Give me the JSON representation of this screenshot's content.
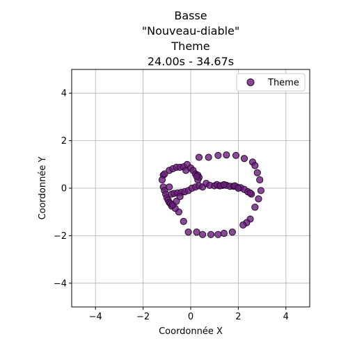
{
  "chart_data": {
    "type": "scatter",
    "title_lines": [
      "Basse",
      "\"Nouveau-diable\"",
      "Theme",
      "24.00s - 34.67s"
    ],
    "xlabel": "Coordonnée X",
    "ylabel": "Coordonnée Y",
    "xlim": [
      -5,
      5
    ],
    "ylim": [
      -5,
      5
    ],
    "xticks": [
      -4,
      -2,
      0,
      2,
      4
    ],
    "yticks": [
      -4,
      -2,
      0,
      2,
      4
    ],
    "xtick_labels": [
      "−4",
      "−2",
      "0",
      "2",
      "4"
    ],
    "ytick_labels": [
      "−4",
      "−2",
      "0",
      "2",
      "4"
    ],
    "grid": true,
    "legend_position": "top-right",
    "series": [
      {
        "name": "Theme",
        "color": "#6a1b7a",
        "edge_color": "#2a0a30",
        "points": [
          [
            -1.15,
            0.55
          ],
          [
            -1.1,
            0.6
          ],
          [
            -0.9,
            0.75
          ],
          [
            -0.75,
            0.82
          ],
          [
            -0.6,
            0.88
          ],
          [
            -0.45,
            0.88
          ],
          [
            -0.3,
            0.9
          ],
          [
            -0.2,
            0.75
          ],
          [
            -0.15,
            1.0
          ],
          [
            0.0,
            0.85
          ],
          [
            0.1,
            0.75
          ],
          [
            0.2,
            0.6
          ],
          [
            0.3,
            0.55
          ],
          [
            0.35,
            0.45
          ],
          [
            0.3,
            0.35
          ],
          [
            0.25,
            0.5
          ],
          [
            -1.2,
            0.35
          ],
          [
            -1.15,
            0.05
          ],
          [
            -1.1,
            -0.1
          ],
          [
            -1.05,
            -0.25
          ],
          [
            -1.0,
            -0.4
          ],
          [
            -0.95,
            -0.5
          ],
          [
            -0.9,
            -0.6
          ],
          [
            -0.85,
            -0.65
          ],
          [
            -0.8,
            -0.75
          ],
          [
            -0.9,
            0.05
          ],
          [
            -0.8,
            -0.25
          ],
          [
            -0.7,
            -0.22
          ],
          [
            -0.55,
            -0.2
          ],
          [
            -0.4,
            -0.18
          ],
          [
            -0.25,
            -0.15
          ],
          [
            -0.1,
            -0.1
          ],
          [
            0.05,
            0.0
          ],
          [
            0.2,
            0.05
          ],
          [
            0.35,
            0.1
          ],
          [
            0.5,
            0.05
          ],
          [
            0.65,
            0.2
          ],
          [
            0.8,
            0.12
          ],
          [
            1.0,
            0.1
          ],
          [
            1.2,
            0.1
          ],
          [
            1.35,
            0.12
          ],
          [
            1.5,
            0.12
          ],
          [
            1.65,
            0.08
          ],
          [
            1.8,
            0.08
          ],
          [
            1.95,
            0.05
          ],
          [
            2.1,
            0.02
          ],
          [
            2.25,
            -0.05
          ],
          [
            2.4,
            -0.15
          ],
          [
            2.55,
            -0.25
          ],
          [
            1.1,
            0.15
          ],
          [
            1.25,
            0.1
          ],
          [
            1.4,
            0.15
          ],
          [
            1.85,
            0.1
          ],
          [
            2.0,
            0.0
          ],
          [
            0.35,
            1.3
          ],
          [
            0.75,
            1.3
          ],
          [
            1.15,
            1.38
          ],
          [
            1.5,
            1.4
          ],
          [
            1.9,
            1.38
          ],
          [
            2.25,
            1.25
          ],
          [
            2.6,
            1.1
          ],
          [
            2.7,
            0.95
          ],
          [
            2.8,
            0.65
          ],
          [
            2.9,
            0.35
          ],
          [
            2.95,
            -0.1
          ],
          [
            2.85,
            -0.45
          ],
          [
            2.7,
            -0.8
          ],
          [
            2.5,
            -1.3
          ],
          [
            2.35,
            -1.45
          ],
          [
            2.2,
            -1.55
          ],
          [
            1.75,
            -1.85
          ],
          [
            1.4,
            -1.9
          ],
          [
            1.15,
            -1.95
          ],
          [
            0.85,
            -1.95
          ],
          [
            0.5,
            -1.95
          ],
          [
            0.25,
            -1.85
          ],
          [
            -0.1,
            -1.85
          ],
          [
            -0.3,
            -1.4
          ],
          [
            -0.5,
            -1.0
          ],
          [
            -0.65,
            -0.85
          ],
          [
            -0.75,
            -0.7
          ],
          [
            -0.6,
            -0.55
          ],
          [
            -0.45,
            -0.35
          ],
          [
            2.5,
            -0.2
          ]
        ]
      }
    ]
  }
}
